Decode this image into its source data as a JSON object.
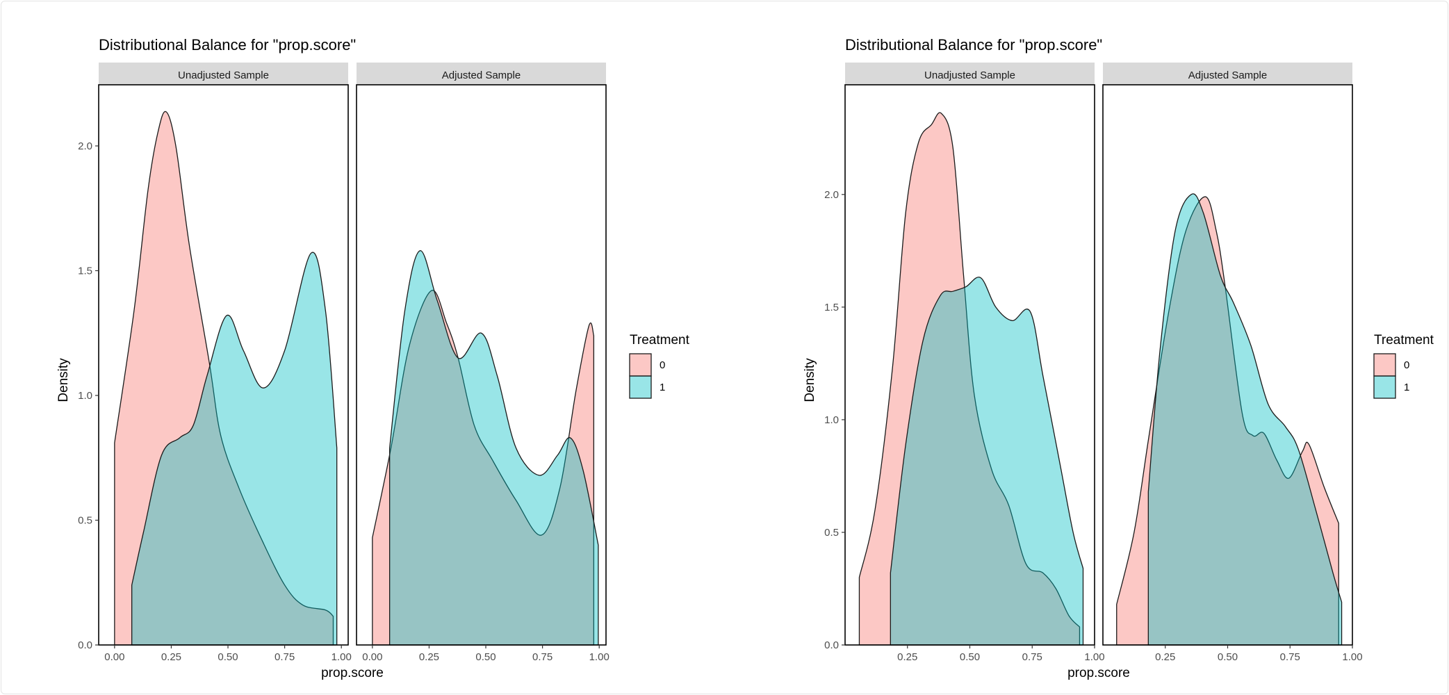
{
  "chart_data": [
    {
      "type": "area",
      "title": "Distributional Balance for \"prop.score\"",
      "xlabel": "prop.score",
      "ylabel": "Density",
      "ylim": [
        0,
        2.245
      ],
      "xlim": [
        -0.07,
        1.03
      ],
      "xticks": [
        0,
        0.25,
        0.5,
        0.75,
        1.0
      ],
      "xtick_labels": [
        "0.00",
        "0.25",
        "0.50",
        "0.75",
        "1.00"
      ],
      "yticks": [
        0,
        0.5,
        1.0,
        1.5,
        2.0
      ],
      "ytick_labels": [
        "0.0",
        "0.5",
        "1.0",
        "1.5",
        "2.0"
      ],
      "grid": false,
      "legend": {
        "title": "Treatment",
        "position": "right",
        "entries": [
          "0",
          "1"
        ]
      },
      "facets": [
        {
          "label": "Unadjusted Sample",
          "series": [
            {
              "name": "0",
              "x": [
                0.0,
                0.086,
                0.147,
                0.19,
                0.227,
                0.27,
                0.33,
                0.418,
                0.468,
                0.548,
                0.65,
                0.75,
                0.83,
                0.93,
                0.964
              ],
              "y": [
                0.81,
                1.34,
                1.82,
                2.05,
                2.137,
                2.0,
                1.6,
                1.13,
                0.84,
                0.63,
                0.42,
                0.24,
                0.16,
                0.14,
                0.115
              ]
            },
            {
              "name": "1",
              "x": [
                0.076,
                0.127,
                0.207,
                0.287,
                0.347,
                0.408,
                0.494,
                0.568,
                0.655,
                0.75,
                0.866,
                0.93,
                0.98
              ],
              "y": [
                0.24,
                0.45,
                0.76,
                0.83,
                0.88,
                1.08,
                1.32,
                1.18,
                1.03,
                1.18,
                1.57,
                1.34,
                0.79
              ]
            }
          ]
        },
        {
          "label": "Adjusted Sample",
          "series": [
            {
              "name": "0",
              "x": [
                0.0,
                0.082,
                0.163,
                0.26,
                0.327,
                0.378,
                0.449,
                0.53,
                0.633,
                0.745,
                0.827,
                0.898,
                0.955,
                0.976
              ],
              "y": [
                0.43,
                0.79,
                1.2,
                1.42,
                1.29,
                1.15,
                0.88,
                0.74,
                0.58,
                0.44,
                0.63,
                1.02,
                1.28,
                1.24
              ]
            },
            {
              "name": "1",
              "x": [
                0.076,
                0.143,
                0.21,
                0.286,
                0.378,
                0.48,
                0.55,
                0.633,
                0.735,
                0.816,
                0.873,
                0.929,
                0.996
              ],
              "y": [
                0.79,
                1.34,
                1.58,
                1.38,
                1.15,
                1.25,
                1.08,
                0.79,
                0.68,
                0.76,
                0.83,
                0.7,
                0.4
              ]
            }
          ]
        }
      ]
    },
    {
      "type": "area",
      "title": "Distributional Balance for \"prop.score\"",
      "xlabel": "prop.score",
      "ylabel": "Density",
      "ylim": [
        0,
        2.487
      ],
      "xlim": [
        0.0,
        1.0
      ],
      "xticks": [
        0.25,
        0.5,
        0.75,
        1.0
      ],
      "xtick_labels": [
        "0.25",
        "0.50",
        "0.75",
        "1.00"
      ],
      "yticks": [
        0,
        0.5,
        1.0,
        1.5,
        2.0
      ],
      "ytick_labels": [
        "0.0",
        "0.5",
        "1.0",
        "1.5",
        "2.0"
      ],
      "grid": false,
      "legend": {
        "title": "Treatment",
        "position": "right",
        "entries": [
          "0",
          "1"
        ]
      },
      "facets": [
        {
          "label": "Unadjusted Sample",
          "series": [
            {
              "name": "0",
              "x": [
                0.057,
                0.12,
                0.19,
                0.243,
                0.294,
                0.346,
                0.386,
                0.432,
                0.475,
                0.518,
                0.587,
                0.656,
                0.725,
                0.793,
                0.845,
                0.897,
                0.94
              ],
              "y": [
                0.3,
                0.6,
                1.23,
                1.92,
                2.23,
                2.31,
                2.36,
                2.21,
                1.64,
                1.11,
                0.78,
                0.62,
                0.36,
                0.32,
                0.25,
                0.13,
                0.08
              ]
            },
            {
              "name": "1",
              "x": [
                0.182,
                0.243,
                0.312,
                0.381,
                0.432,
                0.484,
                0.544,
                0.604,
                0.67,
                0.742,
                0.794,
                0.862,
                0.914,
                0.954
              ],
              "y": [
                0.32,
                0.89,
                1.35,
                1.55,
                1.57,
                1.59,
                1.63,
                1.5,
                1.44,
                1.48,
                1.19,
                0.8,
                0.5,
                0.34
              ]
            }
          ]
        },
        {
          "label": "Adjusted Sample",
          "series": [
            {
              "name": "0",
              "x": [
                0.055,
                0.125,
                0.185,
                0.264,
                0.333,
                0.41,
                0.454,
                0.489,
                0.558,
                0.601,
                0.645,
                0.697,
                0.745,
                0.8,
                0.826,
                0.887,
                0.945
              ],
              "y": [
                0.18,
                0.5,
                0.93,
                1.48,
                1.84,
                1.99,
                1.84,
                1.6,
                1.03,
                0.93,
                0.94,
                0.82,
                0.74,
                0.86,
                0.89,
                0.7,
                0.54
              ]
            },
            {
              "name": "1",
              "x": [
                0.182,
                0.229,
                0.29,
                0.354,
                0.402,
                0.471,
                0.523,
                0.593,
                0.662,
                0.731,
                0.783,
                0.853,
                0.922,
                0.957
              ],
              "y": [
                0.68,
                1.31,
                1.84,
                2.0,
                1.92,
                1.64,
                1.52,
                1.33,
                1.07,
                0.97,
                0.87,
                0.6,
                0.32,
                0.19
              ]
            }
          ]
        }
      ]
    }
  ],
  "colors": {
    "0": "#F8766D",
    "1": "#00BFC4",
    "strip": "#d9d9d9"
  }
}
